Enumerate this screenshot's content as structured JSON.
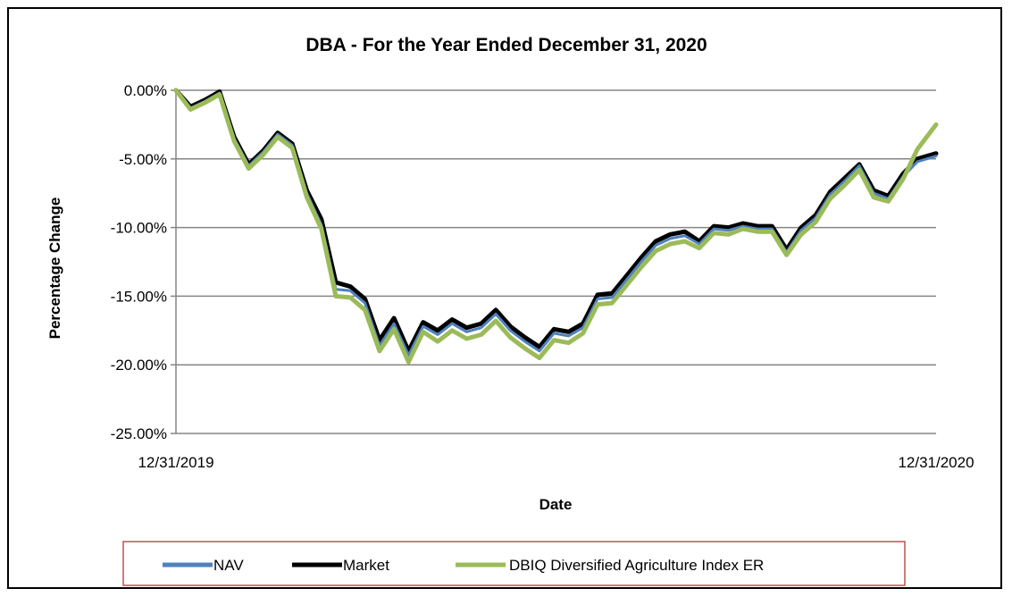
{
  "chart_data": {
    "type": "line",
    "title": "DBA - For the Year Ended December 31, 2020",
    "xlabel": "Date",
    "ylabel": "Percentage Change",
    "x_tick_labels": [
      "12/31/2019",
      "12/31/2020"
    ],
    "y_tick_labels": [
      "0.00%",
      "-5.00%",
      "-10.00%",
      "-15.00%",
      "-20.00%",
      "-25.00%"
    ],
    "ylim": [
      -25,
      0
    ],
    "grid": true,
    "legend_position": "bottom",
    "x": [
      "2019-12-31",
      "2020-01-07",
      "2020-01-14",
      "2020-01-21",
      "2020-01-28",
      "2020-02-04",
      "2020-02-11",
      "2020-02-18",
      "2020-02-25",
      "2020-03-03",
      "2020-03-10",
      "2020-03-17",
      "2020-03-24",
      "2020-03-31",
      "2020-04-07",
      "2020-04-14",
      "2020-04-21",
      "2020-04-28",
      "2020-05-05",
      "2020-05-12",
      "2020-05-19",
      "2020-05-26",
      "2020-06-02",
      "2020-06-09",
      "2020-06-16",
      "2020-06-23",
      "2020-06-30",
      "2020-07-07",
      "2020-07-14",
      "2020-07-21",
      "2020-07-28",
      "2020-08-04",
      "2020-08-11",
      "2020-08-18",
      "2020-08-25",
      "2020-09-01",
      "2020-09-08",
      "2020-09-15",
      "2020-09-22",
      "2020-09-29",
      "2020-10-06",
      "2020-10-13",
      "2020-10-20",
      "2020-10-27",
      "2020-11-03",
      "2020-11-10",
      "2020-11-17",
      "2020-11-24",
      "2020-12-01",
      "2020-12-08",
      "2020-12-15",
      "2020-12-22",
      "2020-12-31"
    ],
    "series": [
      {
        "name": "NAV",
        "color": "#4F81BD",
        "values": [
          0.0,
          -1.3,
          -0.8,
          -0.2,
          -3.5,
          -5.5,
          -4.5,
          -3.2,
          -4.0,
          -7.5,
          -9.8,
          -14.5,
          -14.6,
          -15.5,
          -18.6,
          -17.0,
          -19.3,
          -17.2,
          -17.8,
          -17.0,
          -17.6,
          -17.3,
          -16.3,
          -17.5,
          -18.3,
          -19.0,
          -17.7,
          -17.9,
          -17.3,
          -15.2,
          -15.1,
          -13.8,
          -12.5,
          -11.3,
          -10.8,
          -10.6,
          -11.2,
          -10.1,
          -10.2,
          -9.9,
          -10.1,
          -10.1,
          -11.8,
          -10.2,
          -9.3,
          -7.6,
          -6.6,
          -5.5,
          -7.5,
          -7.9,
          -6.3,
          -5.2,
          -4.8
        ]
      },
      {
        "name": "Market",
        "color": "#000000",
        "values": [
          0.0,
          -1.2,
          -0.7,
          -0.1,
          -3.4,
          -5.4,
          -4.4,
          -3.1,
          -3.9,
          -7.3,
          -9.4,
          -14.0,
          -14.3,
          -15.2,
          -18.2,
          -16.6,
          -19.0,
          -16.9,
          -17.5,
          -16.7,
          -17.3,
          -17.0,
          -16.0,
          -17.2,
          -18.0,
          -18.7,
          -17.4,
          -17.6,
          -17.0,
          -14.9,
          -14.8,
          -13.5,
          -12.2,
          -11.0,
          -10.5,
          -10.3,
          -11.0,
          -9.9,
          -10.0,
          -9.7,
          -9.9,
          -9.9,
          -11.6,
          -10.0,
          -9.1,
          -7.4,
          -6.4,
          -5.4,
          -7.3,
          -7.7,
          -6.1,
          -5.0,
          -4.6
        ]
      },
      {
        "name": "DBIQ Diversified Agriculture Index ER",
        "color": "#9BBB59",
        "values": [
          0.0,
          -1.4,
          -0.9,
          -0.3,
          -3.7,
          -5.7,
          -4.7,
          -3.4,
          -4.2,
          -7.8,
          -10.1,
          -15.0,
          -15.1,
          -16.0,
          -19.0,
          -17.4,
          -19.8,
          -17.6,
          -18.3,
          -17.5,
          -18.1,
          -17.8,
          -16.8,
          -18.0,
          -18.8,
          -19.5,
          -18.2,
          -18.4,
          -17.7,
          -15.6,
          -15.5,
          -14.2,
          -12.9,
          -11.7,
          -11.2,
          -11.0,
          -11.5,
          -10.4,
          -10.5,
          -10.1,
          -10.3,
          -10.3,
          -12.0,
          -10.5,
          -9.6,
          -7.9,
          -6.9,
          -5.8,
          -7.8,
          -8.1,
          -6.5,
          -4.3,
          -2.5
        ]
      }
    ]
  }
}
